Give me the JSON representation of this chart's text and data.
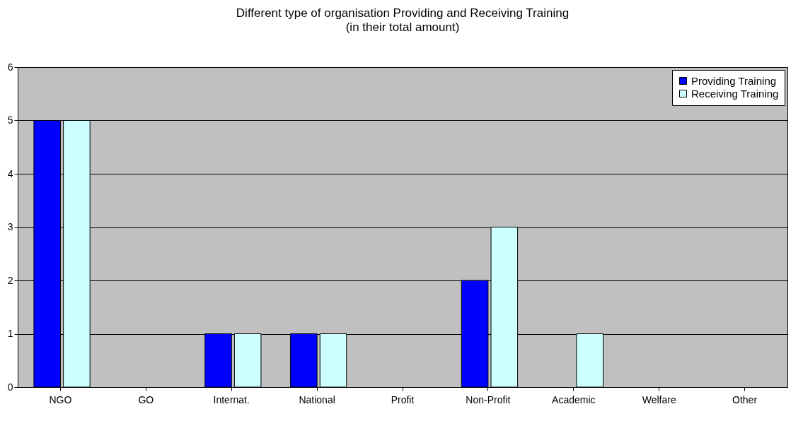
{
  "chart_data": {
    "type": "bar",
    "title": "Different type of organisation Providing  and Receiving Training",
    "subtitle": "(in their total amount)",
    "categories": [
      "NGO",
      "GO",
      "Internat.",
      "National",
      "Profit",
      "Non-Profit",
      "Academic",
      "Welfare",
      "Other"
    ],
    "series": [
      {
        "name": "Providing Training",
        "color": "#0000ff",
        "values": [
          5,
          0,
          1,
          1,
          0,
          2,
          0,
          0,
          0
        ]
      },
      {
        "name": "Receiving Training",
        "color": "#ccffff",
        "values": [
          5,
          0,
          1,
          1,
          0,
          3,
          1,
          0,
          0
        ]
      }
    ],
    "ylim": [
      0,
      6
    ],
    "yticks": [
      0,
      1,
      2,
      3,
      4,
      5,
      6
    ],
    "grid": "y",
    "legend": "top right"
  }
}
